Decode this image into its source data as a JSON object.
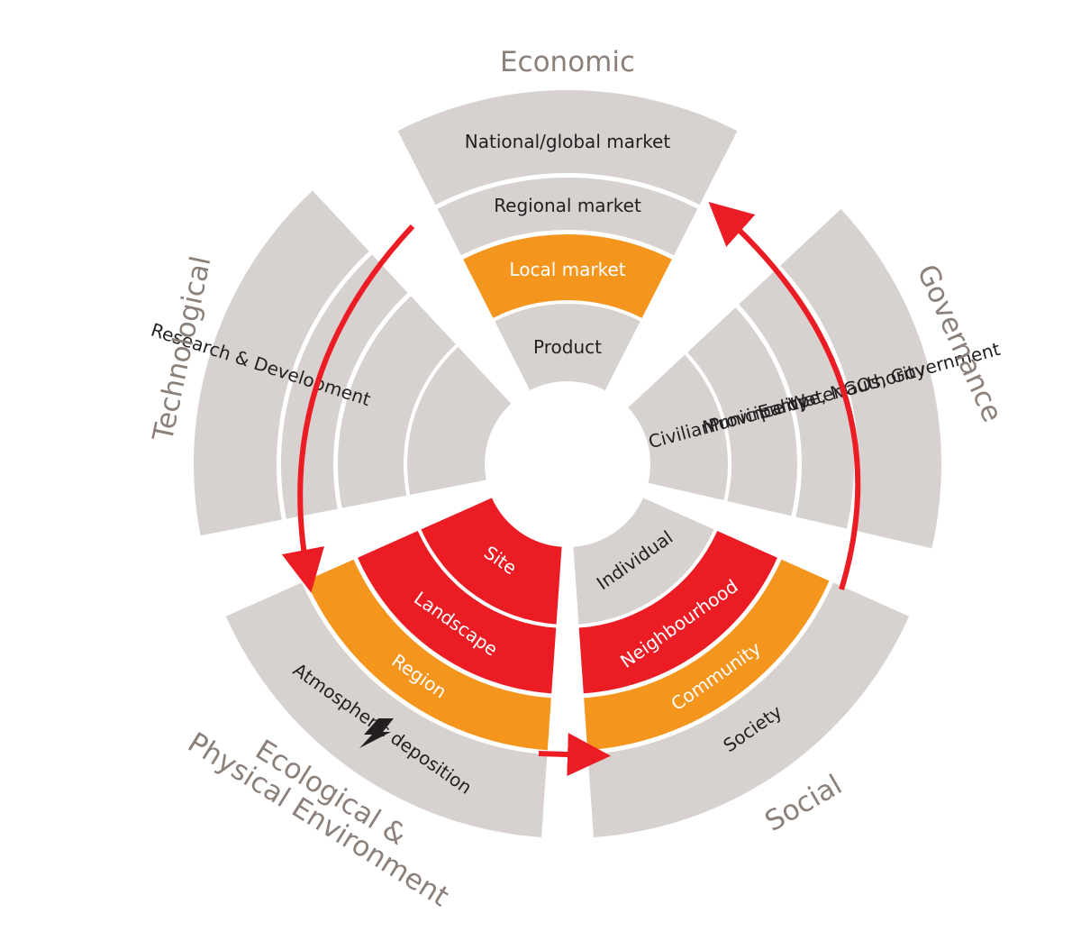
{
  "colors": {
    "grey": "#d7d2cf",
    "orange": "#f4961e",
    "red": "#ec1c24",
    "dark_text": "#231f20",
    "category_text": "#8c807a",
    "arrow": "#ec1c24"
  },
  "categories": {
    "economic": "Economic",
    "governance": "Governance",
    "social": "Social",
    "ecological_line1": "Ecological &",
    "ecological_line2": "Physical Environment",
    "technological": "Technological"
  },
  "sectors": {
    "economic": {
      "rings": [
        {
          "label": "Product",
          "color": "grey"
        },
        {
          "label": "Local market",
          "color": "orange"
        },
        {
          "label": "Regional market",
          "color": "grey"
        },
        {
          "label": "National/global market",
          "color": "grey"
        }
      ]
    },
    "governance": {
      "rings": [
        {
          "label": "Civilian",
          "color": "grey"
        },
        {
          "label": "Municipality",
          "color": "grey"
        },
        {
          "label": "Province Water authority",
          "color": "grey"
        },
        {
          "label": "Europe, NGOs, Government",
          "color": "grey"
        }
      ]
    },
    "social": {
      "rings": [
        {
          "label": "Individual",
          "color": "grey"
        },
        {
          "label": "Neighbourhood",
          "color": "red"
        },
        {
          "label": "Community",
          "color": "orange"
        },
        {
          "label": "Society",
          "color": "grey"
        }
      ]
    },
    "ecological": {
      "rings": [
        {
          "label": "Site",
          "color": "red"
        },
        {
          "label": "Landscape",
          "color": "red"
        },
        {
          "label": "Region",
          "color": "orange"
        },
        {
          "label": "Atmospheric deposition",
          "color": "grey"
        }
      ]
    },
    "technological": {
      "rings": [
        {
          "label": "",
          "color": "grey"
        },
        {
          "label": "",
          "color": "grey"
        },
        {
          "label": "",
          "color": "grey"
        },
        {
          "label": "Research & Development",
          "color": "grey"
        }
      ]
    }
  }
}
